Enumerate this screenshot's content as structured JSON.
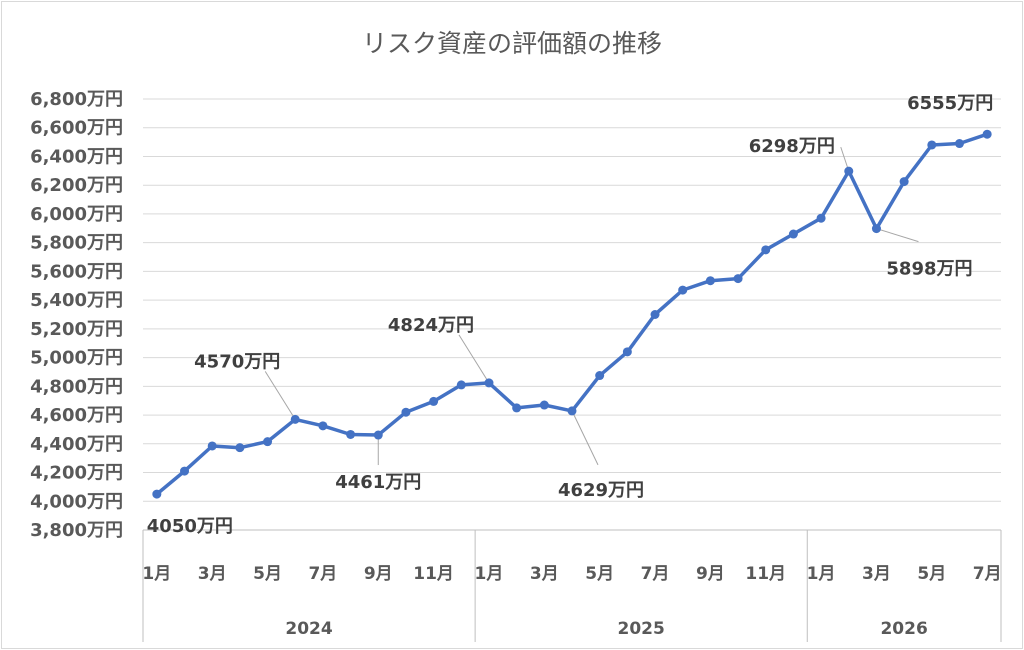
{
  "chart_data": {
    "type": "line",
    "title": "リスク資産の評価額の推移",
    "xlabel": "",
    "ylabel": "",
    "ylim": [
      3800,
      6800
    ],
    "y_tick_step": 200,
    "y_tick_labels": [
      "3,800万円",
      "4,000万円",
      "4,200万円",
      "4,400万円",
      "4,600万円",
      "4,800万円",
      "5,000万円",
      "5,200万円",
      "5,400万円",
      "5,600万円",
      "5,800万円",
      "6,000万円",
      "6,200万円",
      "6,400万円",
      "6,600万円",
      "6,800万円"
    ],
    "grid": "horizontal",
    "legend": "none",
    "line_color": "#4472c4",
    "years": [
      {
        "label": "2024",
        "start": 0,
        "end": 12
      },
      {
        "label": "2025",
        "start": 12,
        "end": 24
      },
      {
        "label": "2026",
        "start": 24,
        "end": 31
      }
    ],
    "x_tick_labels": [
      "1月",
      "3月",
      "5月",
      "7月",
      "9月",
      "11月",
      "1月",
      "3月",
      "5月",
      "7月",
      "9月",
      "11月",
      "1月",
      "3月",
      "5月",
      "7月"
    ],
    "x": [
      "2024-01",
      "2024-02",
      "2024-03",
      "2024-04",
      "2024-05",
      "2024-06",
      "2024-07",
      "2024-08",
      "2024-09",
      "2024-10",
      "2024-11",
      "2024-12",
      "2025-01",
      "2025-02",
      "2025-03",
      "2025-04",
      "2025-05",
      "2025-06",
      "2025-07",
      "2025-08",
      "2025-09",
      "2025-10",
      "2025-11",
      "2025-12",
      "2026-01",
      "2026-02",
      "2026-03",
      "2026-04",
      "2026-05",
      "2026-06",
      "2026-07"
    ],
    "series": [
      {
        "values": [
          4050,
          4210,
          4385,
          4373,
          4415,
          4570,
          4525,
          4465,
          4461,
          4620,
          4695,
          4810,
          4824,
          4650,
          4670,
          4629,
          4875,
          5040,
          5300,
          5470,
          5535,
          5550,
          5750,
          5860,
          5970,
          6298,
          5898,
          6225,
          6480,
          6490,
          6555
        ]
      }
    ],
    "annotations": [
      {
        "index": 0,
        "text": "4050万円",
        "position": "below"
      },
      {
        "index": 5,
        "text": "4570万円",
        "position": "above-left"
      },
      {
        "index": 8,
        "text": "4461万円",
        "position": "below"
      },
      {
        "index": 12,
        "text": "4824万円",
        "position": "above-left"
      },
      {
        "index": 15,
        "text": "4629万円",
        "position": "below-right"
      },
      {
        "index": 25,
        "text": "6298万円",
        "position": "above-left"
      },
      {
        "index": 26,
        "text": "5898万円",
        "position": "below-right"
      },
      {
        "index": 30,
        "text": "6555万円",
        "position": "above-left"
      }
    ]
  }
}
